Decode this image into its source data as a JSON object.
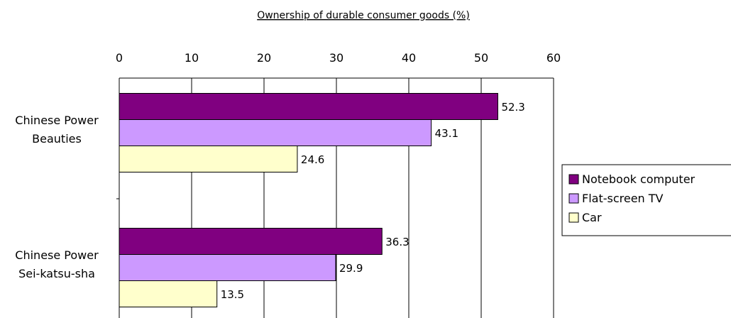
{
  "chart_data": {
    "type": "bar",
    "orientation": "horizontal",
    "title": "Ownership of durable consumer goods (%)",
    "xlabel": "",
    "ylabel": "",
    "xlim": [
      0,
      60
    ],
    "x_ticks": [
      "0",
      "10",
      "20",
      "30",
      "40",
      "50",
      "60"
    ],
    "x_axis_position": "top",
    "grid": true,
    "legend_position": "right",
    "categories": [
      [
        "Chinese Power",
        "Beauties"
      ],
      [
        "Chinese Power",
        "Sei-katsu-sha"
      ]
    ],
    "series": [
      {
        "name": "Notebook computer",
        "color": "#800080",
        "values": [
          52.3,
          36.3
        ],
        "labels": [
          "52.3",
          "36.3"
        ]
      },
      {
        "name": "Flat-screen TV",
        "color": "#cc99ff",
        "values": [
          43.1,
          29.9
        ],
        "labels": [
          "43.1",
          "29.9"
        ]
      },
      {
        "name": "Car",
        "color": "#ffffcc",
        "values": [
          24.6,
          13.5
        ],
        "labels": [
          "24.6",
          "13.5"
        ]
      }
    ]
  }
}
